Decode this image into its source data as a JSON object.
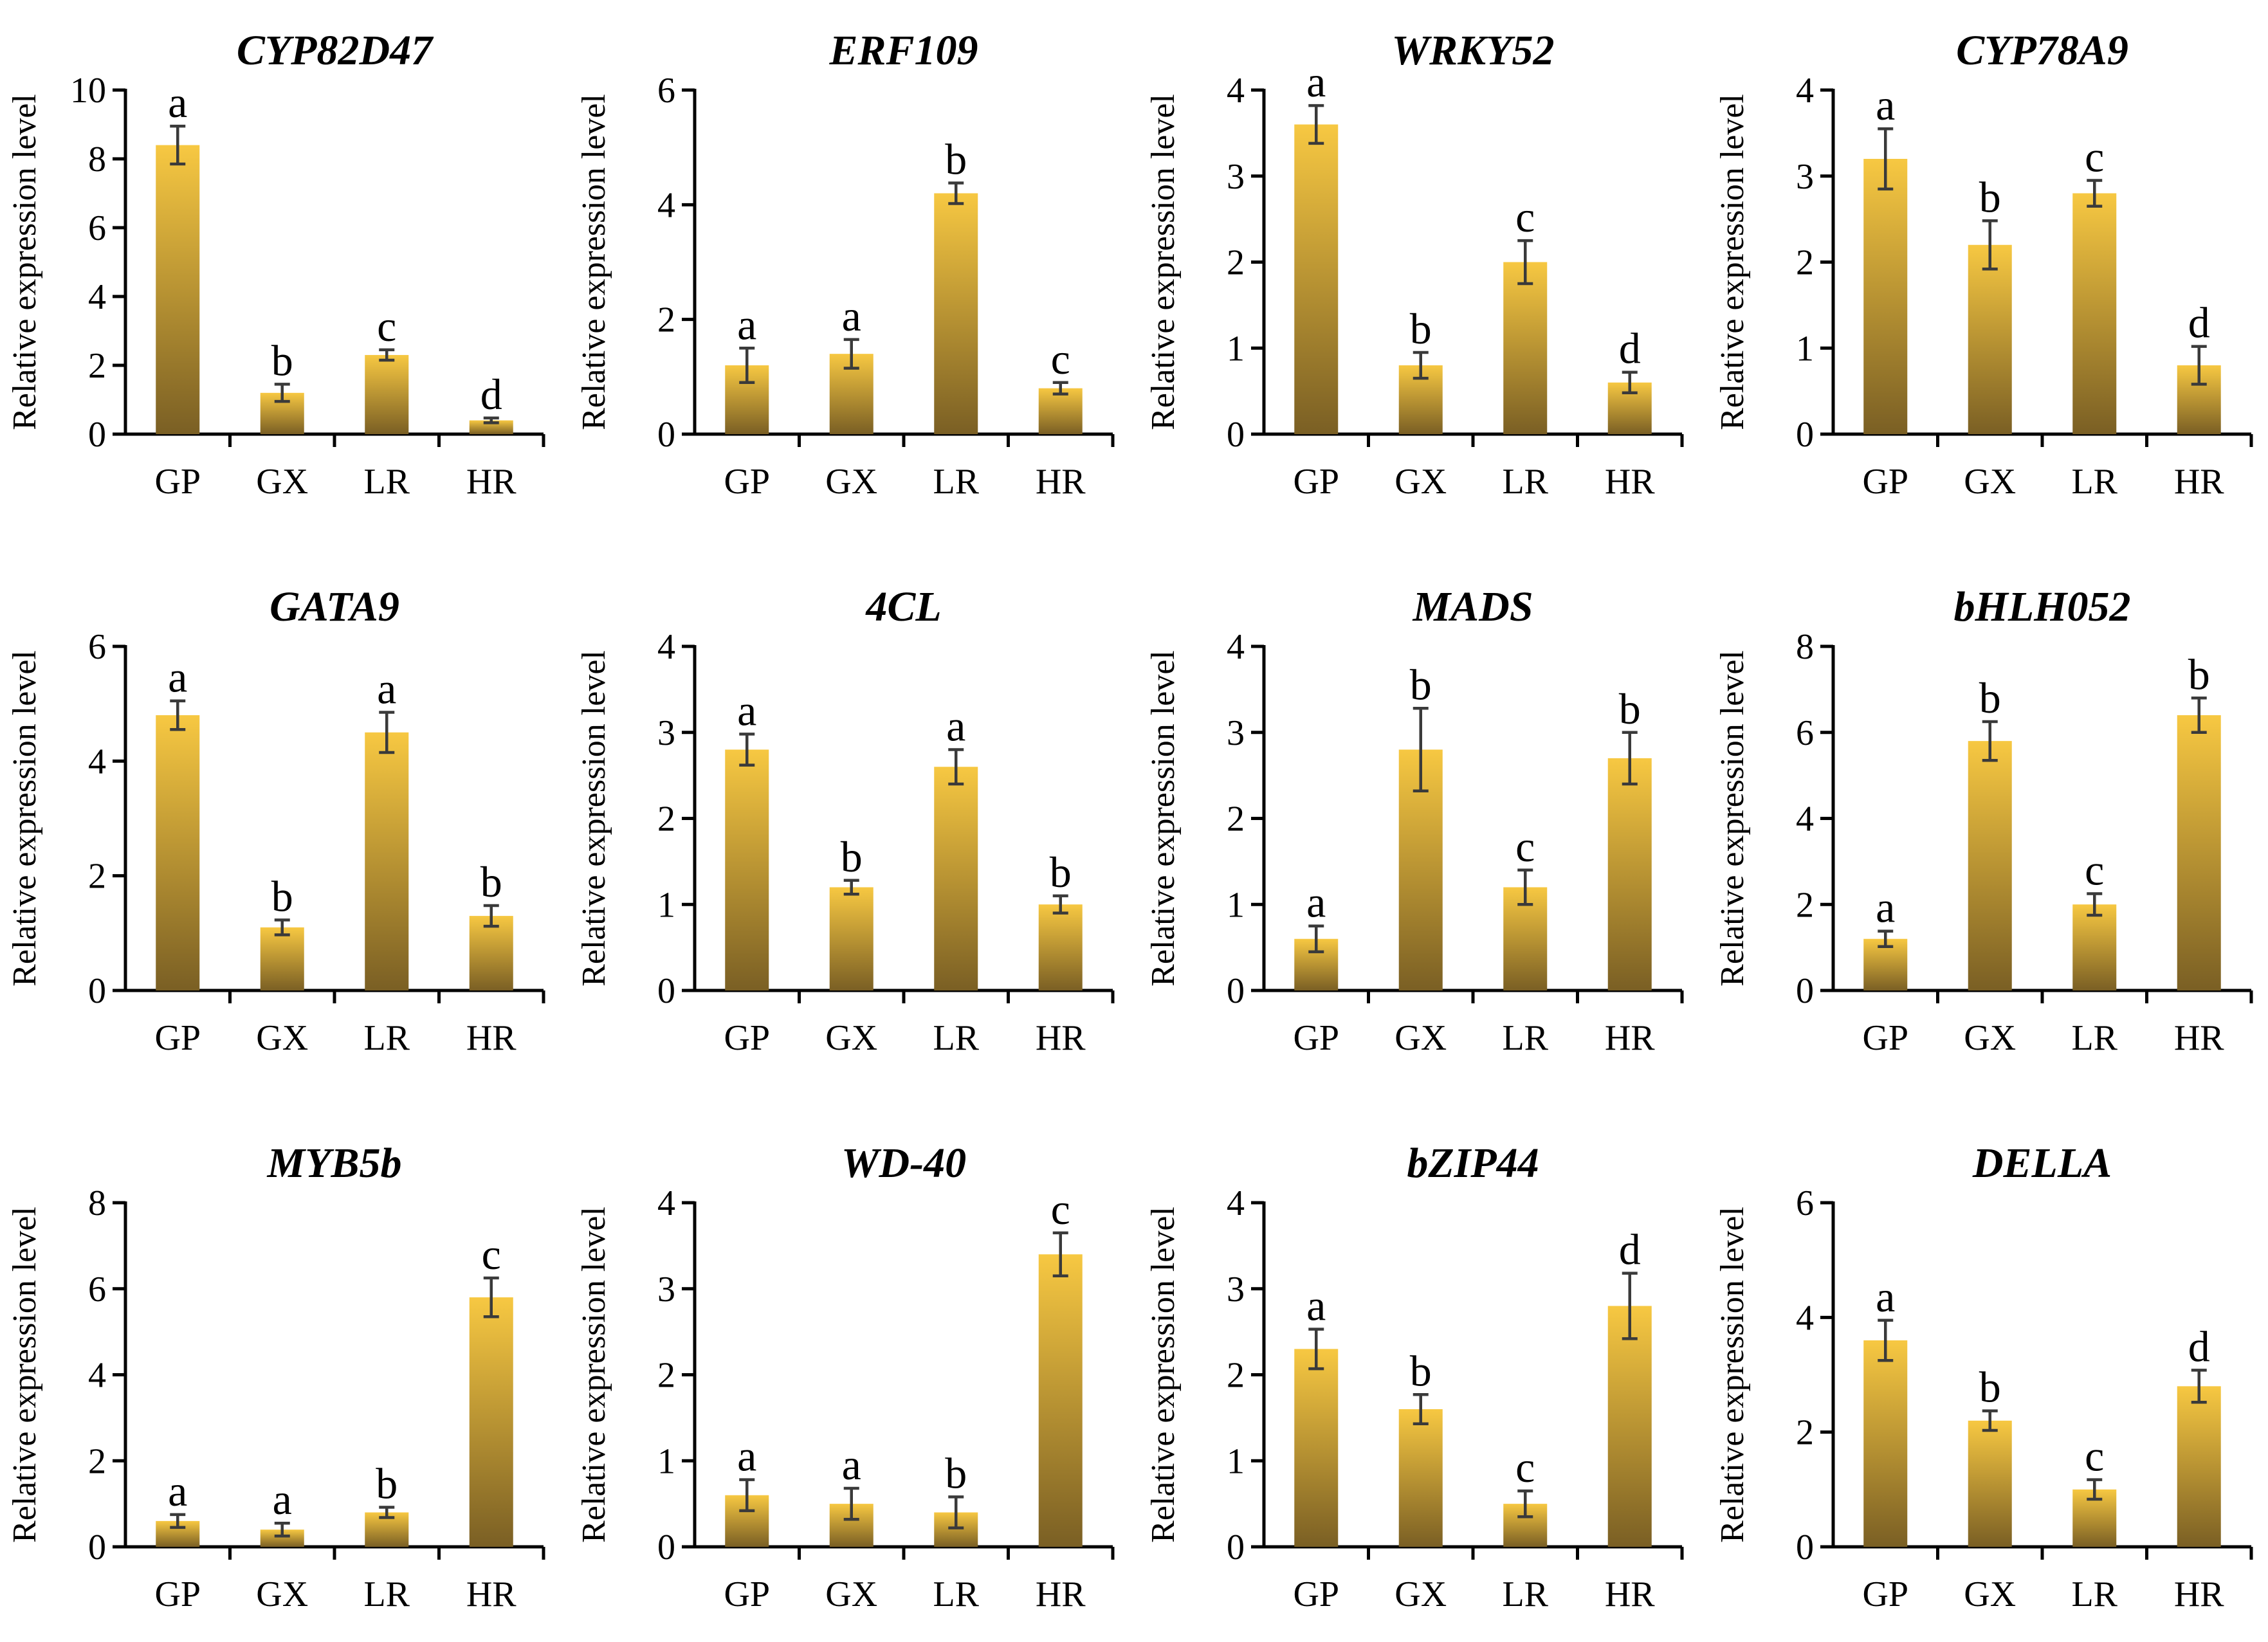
{
  "figure": {
    "bar_gradient": {
      "top": "#F7C842",
      "bottom": "#7A5F24"
    }
  },
  "chart_data": [
    {
      "type": "bar",
      "title": "CYP82D47",
      "ylabel": "Relative expression level",
      "xlabel": "",
      "categories": [
        "GP",
        "GX",
        "LR",
        "HR"
      ],
      "ylim": [
        0,
        10
      ],
      "yticks": [
        0,
        2,
        4,
        6,
        8,
        10
      ],
      "values": [
        8.4,
        1.2,
        2.3,
        0.4
      ],
      "errors": [
        0.55,
        0.25,
        0.15,
        0.07
      ],
      "letters": [
        "a",
        "b",
        "c",
        "d"
      ]
    },
    {
      "type": "bar",
      "title": "ERF109",
      "ylabel": "Relative expression level",
      "xlabel": "",
      "categories": [
        "GP",
        "GX",
        "LR",
        "HR"
      ],
      "ylim": [
        0,
        6
      ],
      "yticks": [
        0,
        2,
        4,
        6
      ],
      "values": [
        1.2,
        1.4,
        4.2,
        0.8
      ],
      "errors": [
        0.3,
        0.25,
        0.18,
        0.1
      ],
      "letters": [
        "a",
        "a",
        "b",
        "c"
      ]
    },
    {
      "type": "bar",
      "title": "WRKY52",
      "ylabel": "Relative expression level",
      "xlabel": "",
      "categories": [
        "GP",
        "GX",
        "LR",
        "HR"
      ],
      "ylim": [
        0,
        4
      ],
      "yticks": [
        0,
        1,
        2,
        3,
        4
      ],
      "values": [
        3.6,
        0.8,
        2.0,
        0.6
      ],
      "errors": [
        0.22,
        0.15,
        0.25,
        0.12
      ],
      "letters": [
        "a",
        "b",
        "c",
        "d"
      ]
    },
    {
      "type": "bar",
      "title": "CYP78A9",
      "ylabel": "Relative expression level",
      "xlabel": "",
      "categories": [
        "GP",
        "GX",
        "LR",
        "HR"
      ],
      "ylim": [
        0,
        4
      ],
      "yticks": [
        0,
        1,
        2,
        3,
        4
      ],
      "values": [
        3.2,
        2.2,
        2.8,
        0.8
      ],
      "errors": [
        0.35,
        0.28,
        0.15,
        0.22
      ],
      "letters": [
        "a",
        "b",
        "c",
        "d"
      ]
    },
    {
      "type": "bar",
      "title": "GATA9",
      "ylabel": "Relative expression level",
      "xlabel": "",
      "categories": [
        "GP",
        "GX",
        "LR",
        "HR"
      ],
      "ylim": [
        0,
        6
      ],
      "yticks": [
        0,
        2,
        4,
        6
      ],
      "values": [
        4.8,
        1.1,
        4.5,
        1.3
      ],
      "errors": [
        0.25,
        0.13,
        0.35,
        0.18
      ],
      "letters": [
        "a",
        "b",
        "a",
        "b"
      ]
    },
    {
      "type": "bar",
      "title": "4CL",
      "ylabel": "Relative expression level",
      "xlabel": "",
      "categories": [
        "GP",
        "GX",
        "LR",
        "HR"
      ],
      "ylim": [
        0,
        4
      ],
      "yticks": [
        0,
        1,
        2,
        3,
        4
      ],
      "values": [
        2.8,
        1.2,
        2.6,
        1.0
      ],
      "errors": [
        0.18,
        0.08,
        0.2,
        0.1
      ],
      "letters": [
        "a",
        "b",
        "a",
        "b"
      ]
    },
    {
      "type": "bar",
      "title": "MADS",
      "ylabel": "Relative expression level",
      "xlabel": "",
      "categories": [
        "GP",
        "GX",
        "LR",
        "HR"
      ],
      "ylim": [
        0,
        4
      ],
      "yticks": [
        0,
        1,
        2,
        3,
        4
      ],
      "values": [
        0.6,
        2.8,
        1.2,
        2.7
      ],
      "errors": [
        0.15,
        0.48,
        0.2,
        0.3
      ],
      "letters": [
        "a",
        "b",
        "c",
        "b"
      ]
    },
    {
      "type": "bar",
      "title": "bHLH052",
      "ylabel": "Relative expression level",
      "xlabel": "",
      "categories": [
        "GP",
        "GX",
        "LR",
        "HR"
      ],
      "ylim": [
        0,
        8
      ],
      "yticks": [
        0,
        2,
        4,
        6,
        8
      ],
      "values": [
        1.2,
        5.8,
        2.0,
        6.4
      ],
      "errors": [
        0.18,
        0.45,
        0.25,
        0.4
      ],
      "letters": [
        "a",
        "b",
        "c",
        "b"
      ]
    },
    {
      "type": "bar",
      "title": "MYB5b",
      "ylabel": "Relative expression level",
      "xlabel": "",
      "categories": [
        "GP",
        "GX",
        "LR",
        "HR"
      ],
      "ylim": [
        0,
        8
      ],
      "yticks": [
        0,
        2,
        4,
        6,
        8
      ],
      "values": [
        0.6,
        0.4,
        0.8,
        5.8
      ],
      "errors": [
        0.15,
        0.15,
        0.12,
        0.45
      ],
      "letters": [
        "a",
        "a",
        "b",
        "c"
      ]
    },
    {
      "type": "bar",
      "title": "WD-40",
      "ylabel": "Relative expression level",
      "xlabel": "",
      "categories": [
        "GP",
        "GX",
        "LR",
        "HR"
      ],
      "ylim": [
        0,
        4
      ],
      "yticks": [
        0,
        1,
        2,
        3,
        4
      ],
      "values": [
        0.6,
        0.5,
        0.4,
        3.4
      ],
      "errors": [
        0.18,
        0.18,
        0.18,
        0.25
      ],
      "letters": [
        "a",
        "a",
        "b",
        "c"
      ]
    },
    {
      "type": "bar",
      "title": "bZIP44",
      "ylabel": "Relative expression level",
      "xlabel": "",
      "categories": [
        "GP",
        "GX",
        "LR",
        "HR"
      ],
      "ylim": [
        0,
        4
      ],
      "yticks": [
        0,
        1,
        2,
        3,
        4
      ],
      "values": [
        2.3,
        1.6,
        0.5,
        2.8
      ],
      "errors": [
        0.23,
        0.17,
        0.15,
        0.38
      ],
      "letters": [
        "a",
        "b",
        "c",
        "d"
      ]
    },
    {
      "type": "bar",
      "title": "DELLA",
      "ylabel": "Relative expression level",
      "xlabel": "",
      "categories": [
        "GP",
        "GX",
        "LR",
        "HR"
      ],
      "ylim": [
        0,
        6
      ],
      "yticks": [
        0,
        2,
        4,
        6
      ],
      "values": [
        3.6,
        2.2,
        1.0,
        2.8
      ],
      "errors": [
        0.35,
        0.17,
        0.17,
        0.28
      ],
      "letters": [
        "a",
        "b",
        "c",
        "d"
      ]
    }
  ]
}
